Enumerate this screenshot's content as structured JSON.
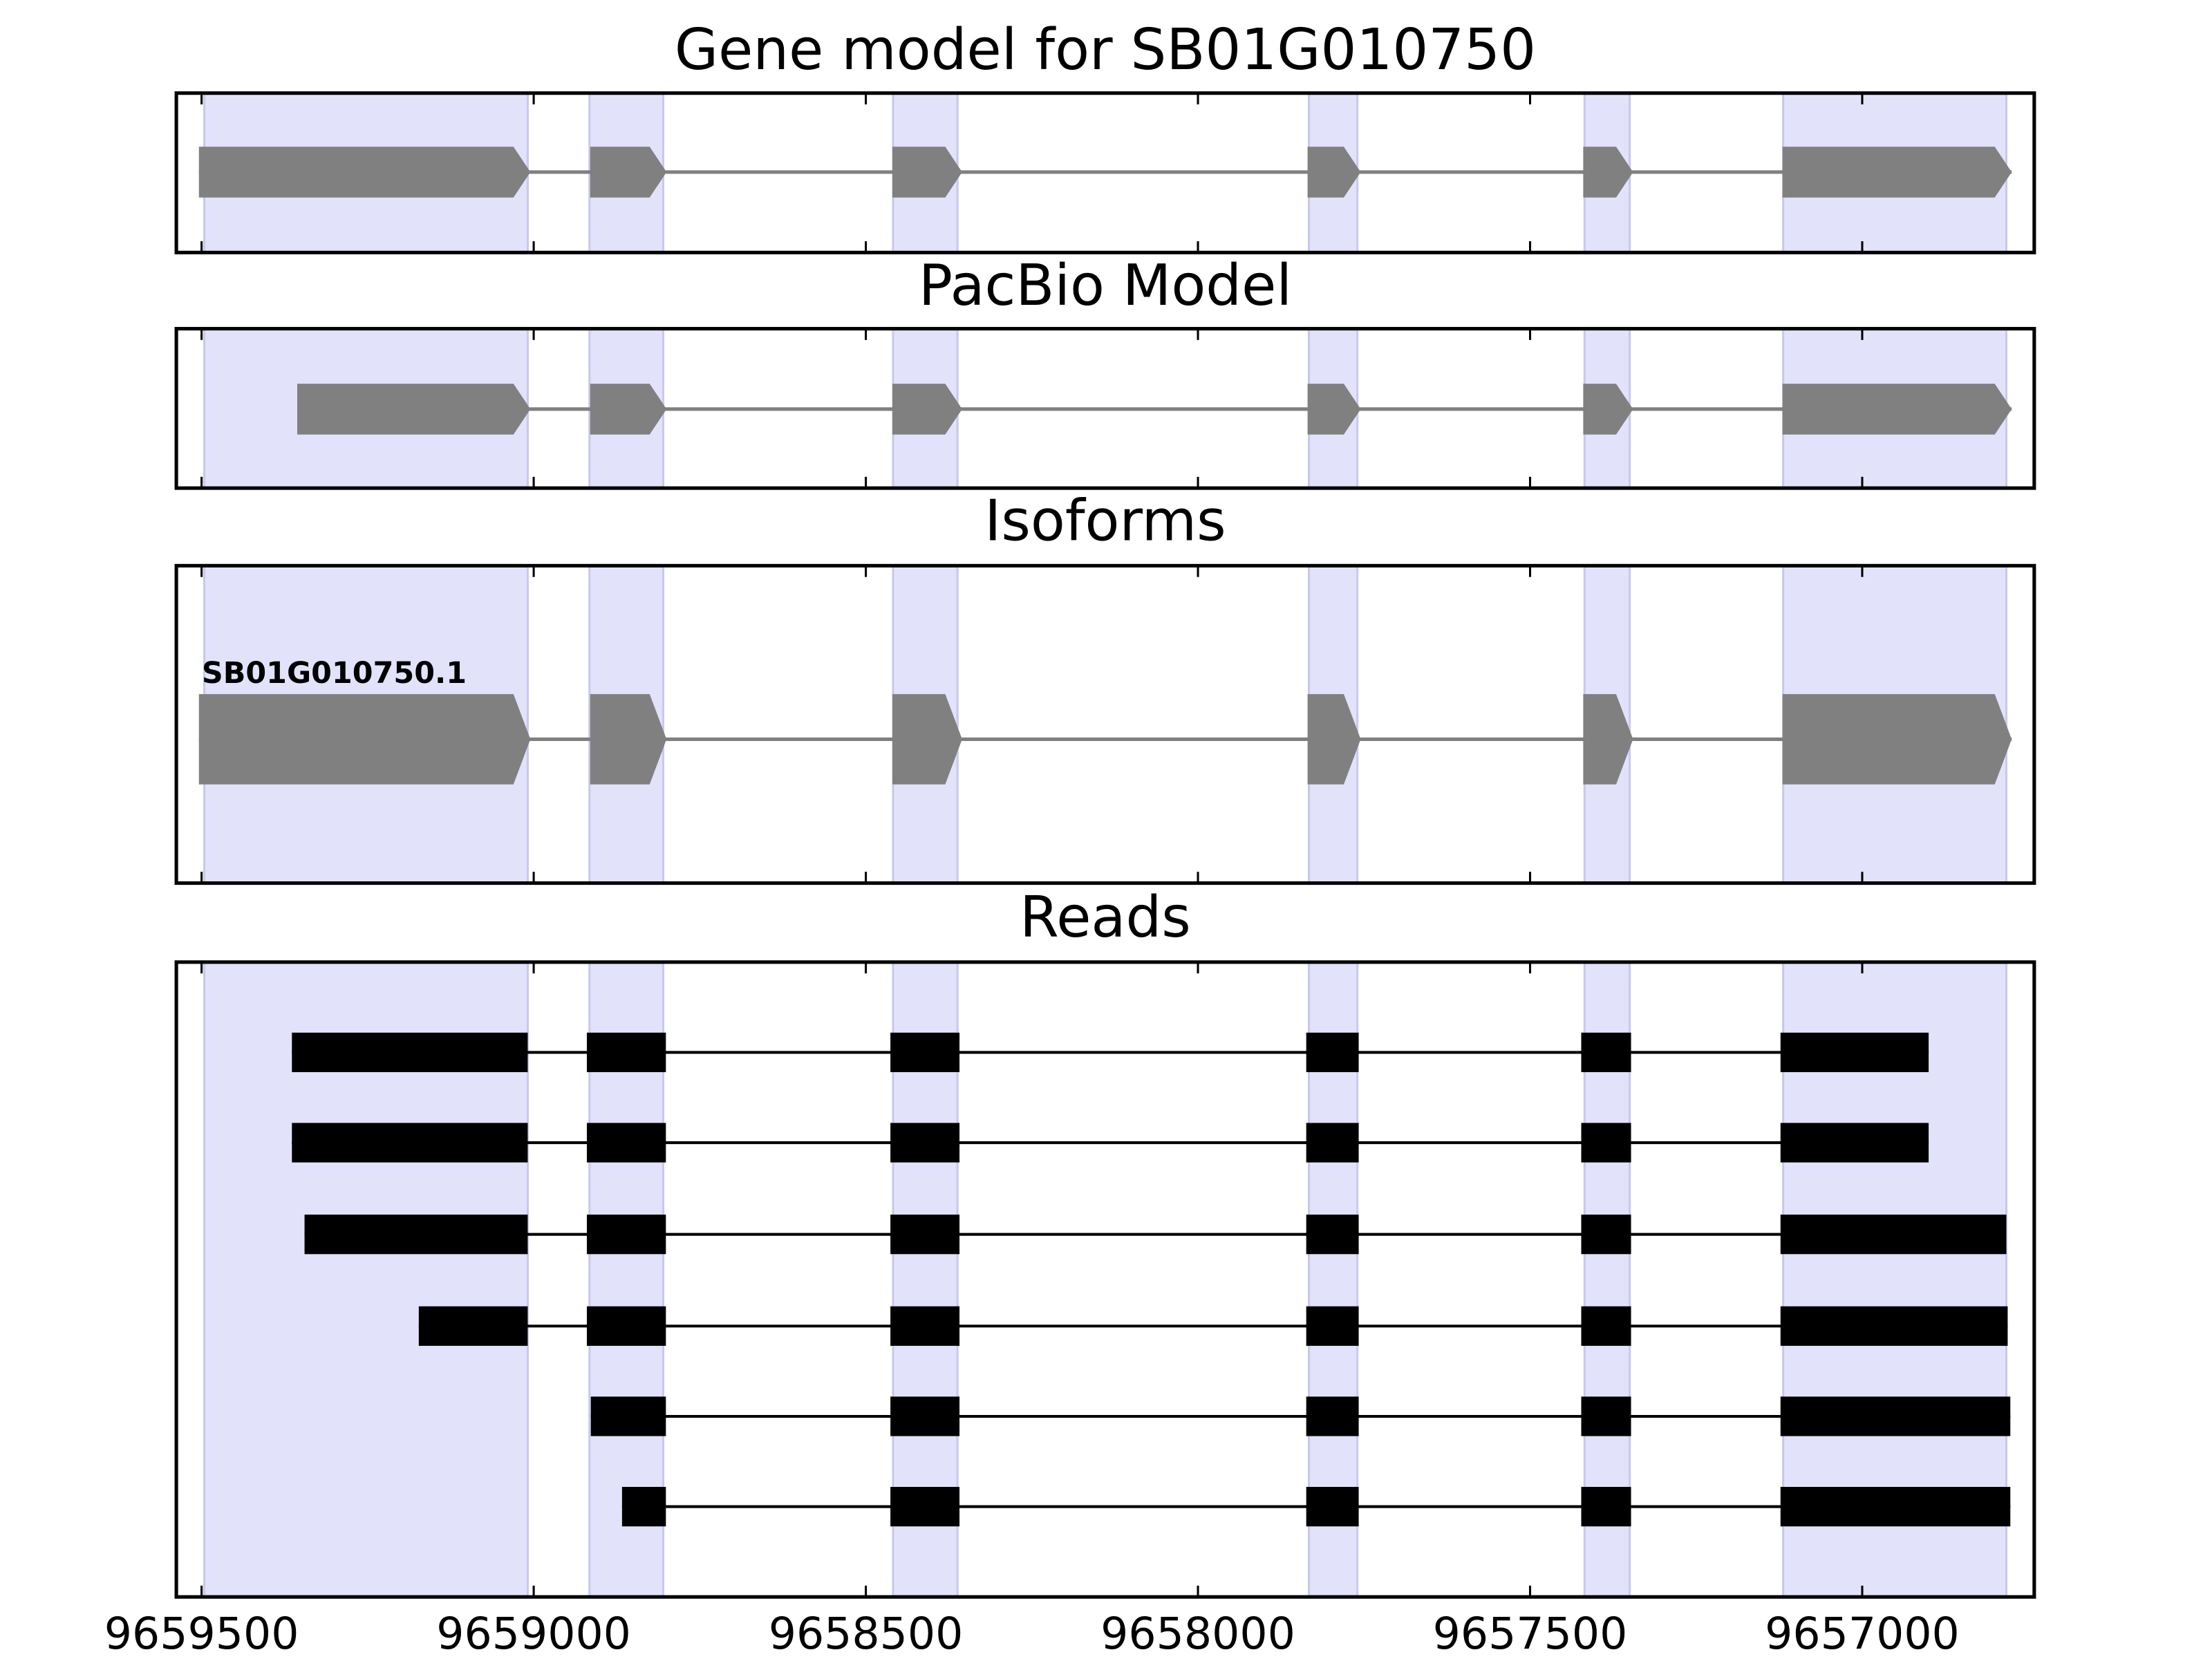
{
  "chart_data": [
    {
      "type": "gene",
      "title": "Gene model for SB01G010750",
      "style": "arrow",
      "color": "#808080",
      "highlight_color": "#e2e2fb",
      "xlim": [
        9659538,
        9656741
      ],
      "xticks": [
        9659500,
        9659000,
        9658500,
        9658000,
        9657500,
        9657000
      ],
      "tick_labels": false,
      "highlights": [
        [
          9659496,
          9659009
        ],
        [
          9658916,
          9658805
        ],
        [
          9658459,
          9658362
        ],
        [
          9657833,
          9657760
        ],
        [
          9657418,
          9657350
        ],
        [
          9657119,
          9656783
        ]
      ],
      "series": [
        {
          "exons": [
            [
              9659504,
              9659005
            ],
            [
              9658915,
              9658800
            ],
            [
              9658460,
              9658355
            ],
            [
              9657835,
              9657755
            ],
            [
              9657420,
              9657345
            ],
            [
              9657120,
              9656775
            ]
          ]
        }
      ]
    },
    {
      "type": "gene",
      "title": "PacBio Model",
      "style": "arrow",
      "color": "#808080",
      "highlight_color": "#e2e2fb",
      "xlim": [
        9659538,
        9656741
      ],
      "xticks": [
        9659500,
        9659000,
        9658500,
        9658000,
        9657500,
        9657000
      ],
      "tick_labels": false,
      "highlights": [
        [
          9659496,
          9659009
        ],
        [
          9658916,
          9658805
        ],
        [
          9658459,
          9658362
        ],
        [
          9657833,
          9657760
        ],
        [
          9657418,
          9657350
        ],
        [
          9657119,
          9656783
        ]
      ],
      "series": [
        {
          "exons": [
            [
              9659356,
              9659005
            ],
            [
              9658915,
              9658800
            ],
            [
              9658460,
              9658355
            ],
            [
              9657835,
              9657755
            ],
            [
              9657420,
              9657345
            ],
            [
              9657120,
              9656775
            ]
          ]
        }
      ]
    },
    {
      "type": "gene",
      "title": "Isoforms",
      "style": "arrow",
      "color": "#808080",
      "highlight_color": "#e2e2fb",
      "xlim": [
        9659538,
        9656741
      ],
      "xticks": [
        9659500,
        9659000,
        9658500,
        9658000,
        9657500,
        9657000
      ],
      "tick_labels": false,
      "highlights": [
        [
          9659496,
          9659009
        ],
        [
          9658916,
          9658805
        ],
        [
          9658459,
          9658362
        ],
        [
          9657833,
          9657760
        ],
        [
          9657418,
          9657350
        ],
        [
          9657119,
          9656783
        ]
      ],
      "series": [
        {
          "name": "SB01G010750.1",
          "exons": [
            [
              9659504,
              9659005
            ],
            [
              9658915,
              9658800
            ],
            [
              9658460,
              9658355
            ],
            [
              9657835,
              9657755
            ],
            [
              9657420,
              9657345
            ],
            [
              9657120,
              9656775
            ]
          ]
        }
      ]
    },
    {
      "type": "gene",
      "title": "Reads",
      "style": "box",
      "color": "#000000",
      "highlight_color": "#e2e2fb",
      "xlim": [
        9659538,
        9656741
      ],
      "xticks": [
        9659500,
        9659000,
        9658500,
        9658000,
        9657500,
        9657000
      ],
      "tick_labels": true,
      "highlights": [
        [
          9659496,
          9659009
        ],
        [
          9658916,
          9658805
        ],
        [
          9658459,
          9658362
        ],
        [
          9657833,
          9657760
        ],
        [
          9657418,
          9657350
        ],
        [
          9657119,
          9656783
        ]
      ],
      "series": [
        {
          "exons": [
            [
              9659364,
              9659009
            ],
            [
              9658920,
              9658801
            ],
            [
              9658463,
              9658359
            ],
            [
              9657837,
              9657758
            ],
            [
              9657423,
              9657348
            ],
            [
              9657123,
              9656900
            ]
          ]
        },
        {
          "exons": [
            [
              9659364,
              9659009
            ],
            [
              9658920,
              9658801
            ],
            [
              9658463,
              9658359
            ],
            [
              9657837,
              9657758
            ],
            [
              9657423,
              9657348
            ],
            [
              9657123,
              9656900
            ]
          ]
        },
        {
          "exons": [
            [
              9659345,
              9659009
            ],
            [
              9658920,
              9658801
            ],
            [
              9658463,
              9658359
            ],
            [
              9657837,
              9657758
            ],
            [
              9657423,
              9657348
            ],
            [
              9657123,
              9656783
            ]
          ]
        },
        {
          "exons": [
            [
              9659173,
              9659009
            ],
            [
              9658920,
              9658801
            ],
            [
              9658463,
              9658359
            ],
            [
              9657837,
              9657758
            ],
            [
              9657423,
              9657348
            ],
            [
              9657123,
              9656781
            ]
          ]
        },
        {
          "exons": [
            [
              9658914,
              9658801
            ],
            [
              9658463,
              9658359
            ],
            [
              9657837,
              9657758
            ],
            [
              9657423,
              9657348
            ],
            [
              9657123,
              9656777
            ]
          ]
        },
        {
          "exons": [
            [
              9658867,
              9658801
            ],
            [
              9658463,
              9658359
            ],
            [
              9657837,
              9657758
            ],
            [
              9657423,
              9657348
            ],
            [
              9657123,
              9656777
            ]
          ]
        }
      ]
    }
  ]
}
